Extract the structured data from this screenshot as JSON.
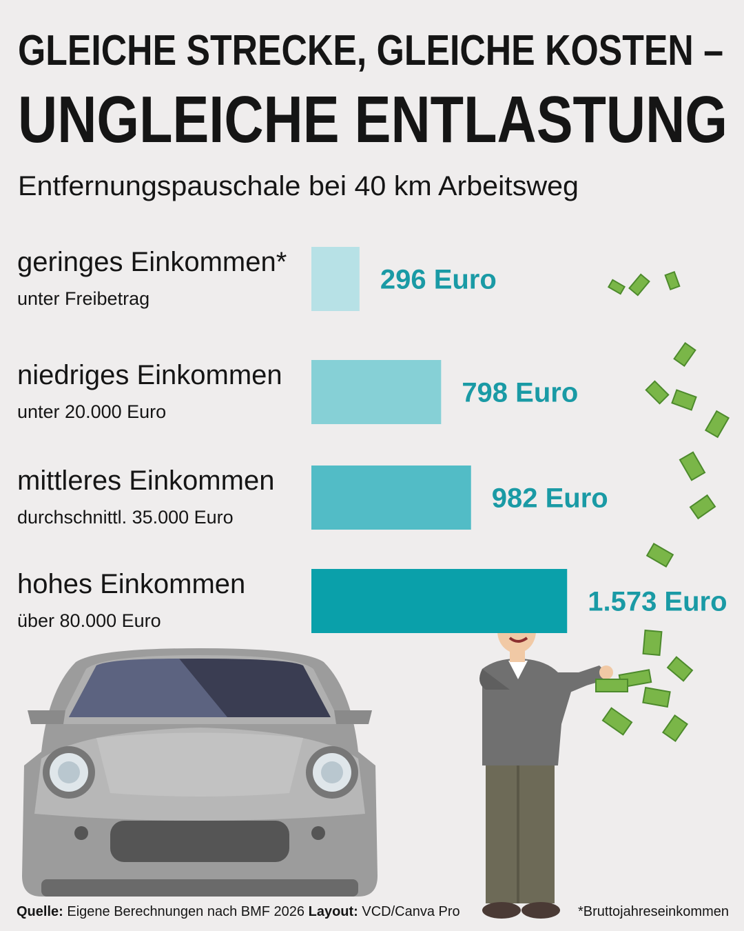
{
  "header": {
    "title": [
      "GLEICHE STRECKE, GLEICHE KOSTEN –",
      "UNGLEICHE ENTLASTUNG"
    ],
    "subtitle": "Entfernungspauschale bei 40 km Arbeitsweg"
  },
  "chart_data": {
    "type": "bar",
    "categories": [
      "geringes Einkommen*",
      "niedriges Einkommen",
      "mittleres Einkommen",
      "hohes Einkommen"
    ],
    "sublabels": [
      "unter Freibetrag",
      "unter 20.000 Euro",
      "durchschnittl. 35.000 Euro",
      "über 80.000 Euro"
    ],
    "values": [
      296,
      798,
      982,
      1573
    ],
    "value_labels": [
      "296 Euro",
      "798 Euro",
      "982 Euro",
      "1.573 Euro"
    ],
    "colors": [
      "#b7e1e6",
      "#86d0d6",
      "#52bcc6",
      "#0aa0aa"
    ],
    "label_color": "#1a9aa5"
  },
  "footer": {
    "source_label": "Quelle:",
    "source": "Eigene Berechnungen nach BMF 2026",
    "layout_label": "Layout:",
    "layout": "VCD/Canva Pro",
    "note": "*Bruttojahreseinkommen"
  }
}
